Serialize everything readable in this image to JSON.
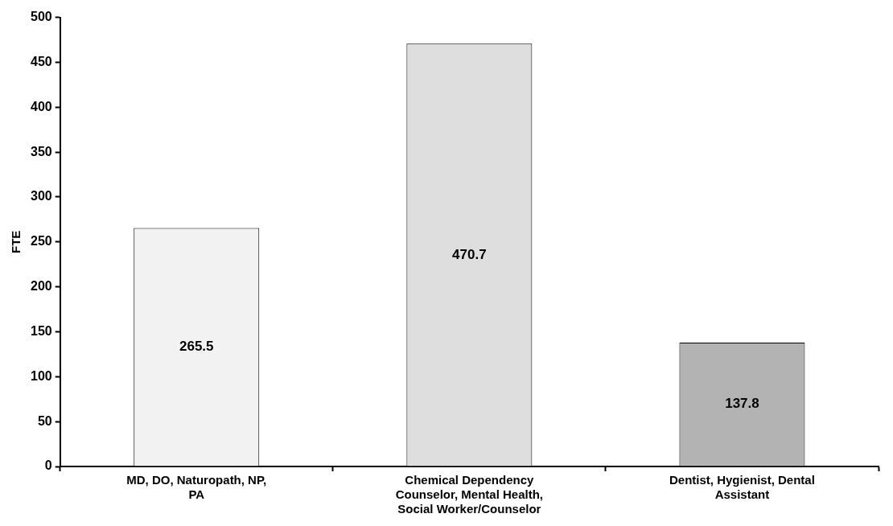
{
  "chart_data": {
    "type": "bar",
    "ylabel": "FTE",
    "categories": [
      "MD, DO, Naturopath, NP, PA",
      "Chemical Dependency Counselor, Mental Health, Social Worker/Counselor",
      "Dentist, Hygienist, Dental Assistant"
    ],
    "values": [
      265.5,
      470.7,
      137.8
    ],
    "colors": [
      "#f2f2f2",
      "#dedede",
      "#b3b3b3"
    ],
    "ylim": [
      0,
      500
    ],
    "yticks": [
      0,
      50,
      100,
      150,
      200,
      250,
      300,
      350,
      400,
      450,
      500
    ],
    "grid": false,
    "legend": false,
    "data_labels": true
  }
}
